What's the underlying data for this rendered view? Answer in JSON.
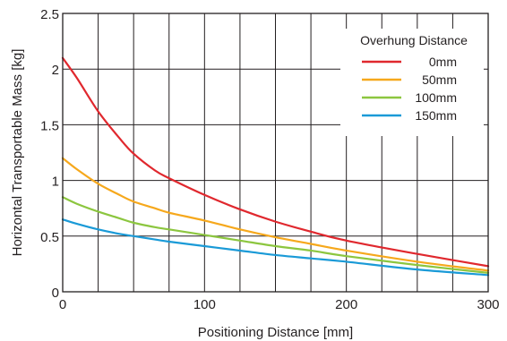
{
  "chart_data": {
    "type": "line",
    "title": "",
    "xlabel": "Positioning Distance [mm]",
    "ylabel": "Horizontal Transportable Mass [kg]",
    "xlim": [
      0,
      300
    ],
    "ylim": [
      0,
      2.5
    ],
    "x_ticks": [
      "0",
      "100",
      "200",
      "300"
    ],
    "y_ticks": [
      "0",
      "0.5",
      "1",
      "1.5",
      "2",
      "2.5"
    ],
    "grid": true,
    "legend": {
      "title": "Overhung Distance",
      "position": "top-right"
    },
    "series": [
      {
        "name": "0mm",
        "color": "#e0282e",
        "x": [
          0,
          10,
          25,
          40,
          50,
          65,
          75,
          100,
          125,
          150,
          175,
          200,
          250,
          300
        ],
        "y": [
          2.1,
          1.92,
          1.62,
          1.38,
          1.24,
          1.09,
          1.02,
          0.87,
          0.74,
          0.63,
          0.54,
          0.46,
          0.34,
          0.23
        ]
      },
      {
        "name": "50mm",
        "color": "#f6a81c",
        "x": [
          0,
          10,
          25,
          40,
          50,
          65,
          75,
          100,
          125,
          150,
          175,
          200,
          250,
          300
        ],
        "y": [
          1.2,
          1.1,
          0.97,
          0.87,
          0.81,
          0.75,
          0.71,
          0.64,
          0.56,
          0.49,
          0.43,
          0.37,
          0.27,
          0.19
        ]
      },
      {
        "name": "100mm",
        "color": "#8cc63f",
        "x": [
          0,
          10,
          25,
          40,
          50,
          65,
          75,
          100,
          125,
          150,
          175,
          200,
          250,
          300
        ],
        "y": [
          0.85,
          0.79,
          0.72,
          0.66,
          0.62,
          0.58,
          0.56,
          0.51,
          0.46,
          0.41,
          0.37,
          0.32,
          0.24,
          0.17
        ]
      },
      {
        "name": "150mm",
        "color": "#1a9ad7",
        "x": [
          0,
          10,
          25,
          40,
          50,
          65,
          75,
          100,
          125,
          150,
          175,
          200,
          250,
          300
        ],
        "y": [
          0.65,
          0.61,
          0.56,
          0.52,
          0.5,
          0.47,
          0.45,
          0.41,
          0.37,
          0.33,
          0.3,
          0.27,
          0.2,
          0.15
        ]
      }
    ]
  }
}
